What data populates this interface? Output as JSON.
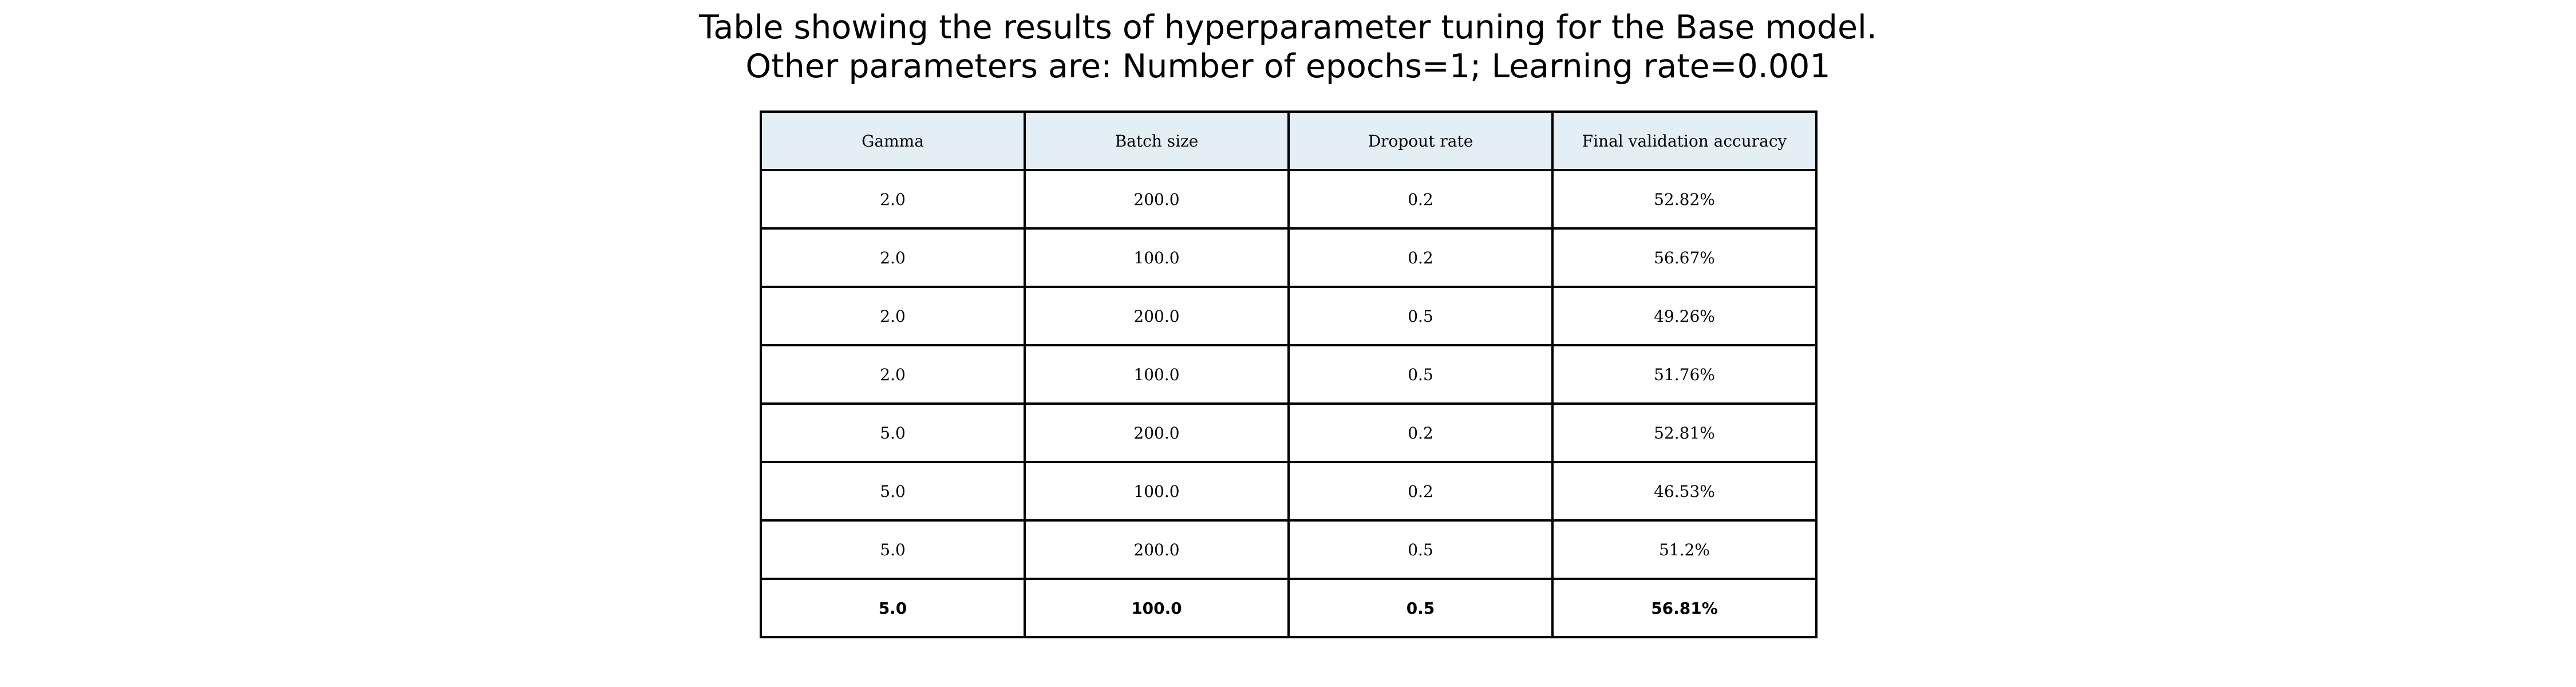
{
  "chart_data": {
    "type": "table",
    "title": [
      "Table showing the results of hyperparameter tuning for the Base model.",
      "Other parameters are: Number of epochs=1; Learning rate=0.001"
    ],
    "columns": [
      "Gamma",
      "Batch size",
      "Dropout rate",
      "Final validation accuracy"
    ],
    "rows": [
      [
        "2.0",
        "200.0",
        "0.2",
        "52.82%"
      ],
      [
        "2.0",
        "100.0",
        "0.2",
        "56.67%"
      ],
      [
        "2.0",
        "200.0",
        "0.5",
        "49.26%"
      ],
      [
        "2.0",
        "100.0",
        "0.5",
        "51.76%"
      ],
      [
        "5.0",
        "200.0",
        "0.2",
        "52.81%"
      ],
      [
        "5.0",
        "100.0",
        "0.2",
        "46.53%"
      ],
      [
        "5.0",
        "200.0",
        "0.5",
        "51.2%"
      ],
      [
        "5.0",
        "100.0",
        "0.5",
        "56.81%"
      ]
    ],
    "highlighted_row": 7,
    "header_color": "#e3eff5"
  }
}
